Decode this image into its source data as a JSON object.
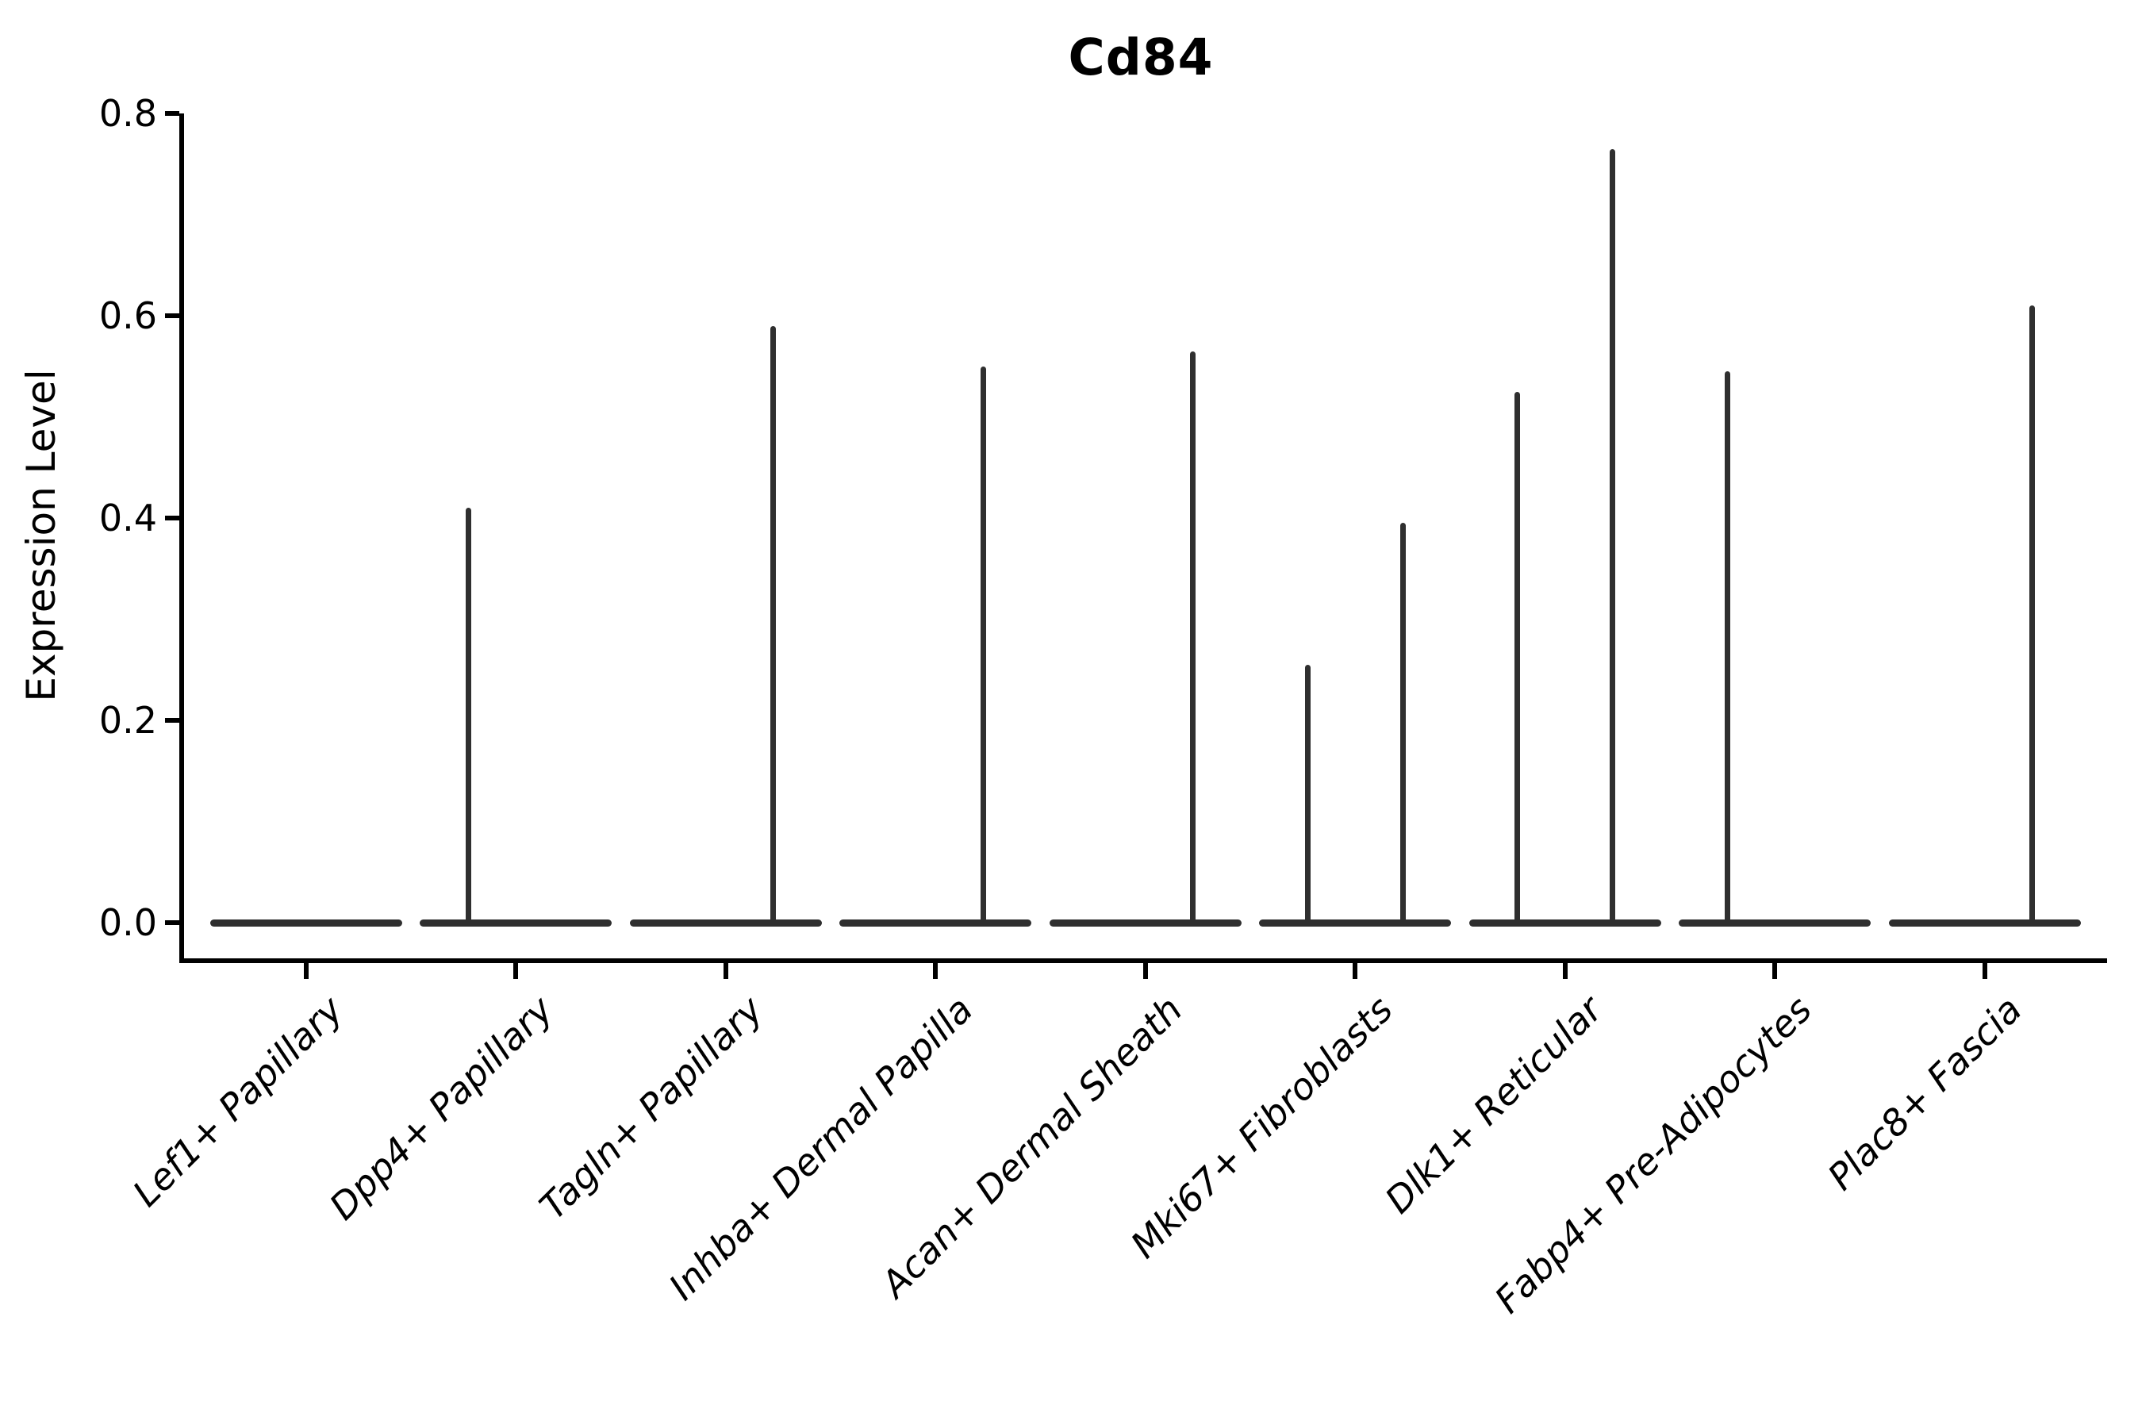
{
  "figure": {
    "title": "Cd84"
  },
  "y_axis": {
    "label": "Expression Level",
    "tick_labels": [
      "0.0",
      "0.2",
      "0.4",
      "0.6",
      "0.8"
    ]
  },
  "x_axis": {
    "tick_labels": [
      "Lef1+ Papillary",
      "Dpp4+ Papillary",
      "Tagln+ Papillary",
      "Inhba+ Dermal Papilla",
      "Acan+ Dermal Sheath",
      "Mki67+ Fibroblasts",
      "Dlk1+ Reticular",
      "Fabp4+ Pre-Adipocytes",
      "Plac8+ Fascia"
    ]
  },
  "chart_data": {
    "type": "violin",
    "title": "Cd84",
    "xlabel": "",
    "ylabel": "Expression Level",
    "ylim": [
      0.0,
      0.8
    ],
    "yticks": [
      0.0,
      0.2,
      0.4,
      0.6,
      0.8
    ],
    "grid": false,
    "legend": "none",
    "violin_color": "#2f2f2f",
    "categories": [
      "Lef1+ Papillary",
      "Dpp4+ Papillary",
      "Tagln+ Papillary",
      "Inhba+ Dermal Papilla",
      "Acan+ Dermal Sheath",
      "Mki67+ Fibroblasts",
      "Dlk1+ Reticular",
      "Fabp4+ Pre-Adipocytes",
      "Plac8+ Fascia"
    ],
    "description": "Violin plot of Cd84 expression; density is concentrated at 0 (flat wide base) with thin spikes reaching the maximum expression value. Each category slot holds two adjacent half-width violins (left/right group).",
    "violins": [
      {
        "category": "Lef1+ Papillary",
        "baseline_value": 0.0,
        "halves": [
          {
            "side": "left",
            "peak": 0.0
          },
          {
            "side": "right",
            "peak": 0.0
          }
        ]
      },
      {
        "category": "Dpp4+ Papillary",
        "baseline_value": 0.0,
        "halves": [
          {
            "side": "left",
            "peak": 0.41
          },
          {
            "side": "right",
            "peak": 0.0
          }
        ]
      },
      {
        "category": "Tagln+ Papillary",
        "baseline_value": 0.0,
        "halves": [
          {
            "side": "left",
            "peak": 0.0
          },
          {
            "side": "right",
            "peak": 0.59
          }
        ]
      },
      {
        "category": "Inhba+ Dermal Papilla",
        "baseline_value": 0.0,
        "halves": [
          {
            "side": "left",
            "peak": 0.0
          },
          {
            "side": "right",
            "peak": 0.55
          }
        ]
      },
      {
        "category": "Acan+ Dermal Sheath",
        "baseline_value": 0.0,
        "halves": [
          {
            "side": "left",
            "peak": 0.0
          },
          {
            "side": "right",
            "peak": 0.565
          }
        ]
      },
      {
        "category": "Mki67+ Fibroblasts",
        "baseline_value": 0.0,
        "halves": [
          {
            "side": "left",
            "peak": 0.255
          },
          {
            "side": "right",
            "peak": 0.395
          }
        ]
      },
      {
        "category": "Dlk1+ Reticular",
        "baseline_value": 0.0,
        "halves": [
          {
            "side": "left",
            "peak": 0.525
          },
          {
            "side": "right",
            "peak": 0.765
          }
        ]
      },
      {
        "category": "Fabp4+ Pre-Adipocytes",
        "baseline_value": 0.0,
        "halves": [
          {
            "side": "left",
            "peak": 0.545
          },
          {
            "side": "right",
            "peak": 0.0
          }
        ]
      },
      {
        "category": "Plac8+ Fascia",
        "baseline_value": 0.0,
        "halves": [
          {
            "side": "left",
            "peak": 0.0
          },
          {
            "side": "right",
            "peak": 0.61
          }
        ]
      }
    ]
  }
}
